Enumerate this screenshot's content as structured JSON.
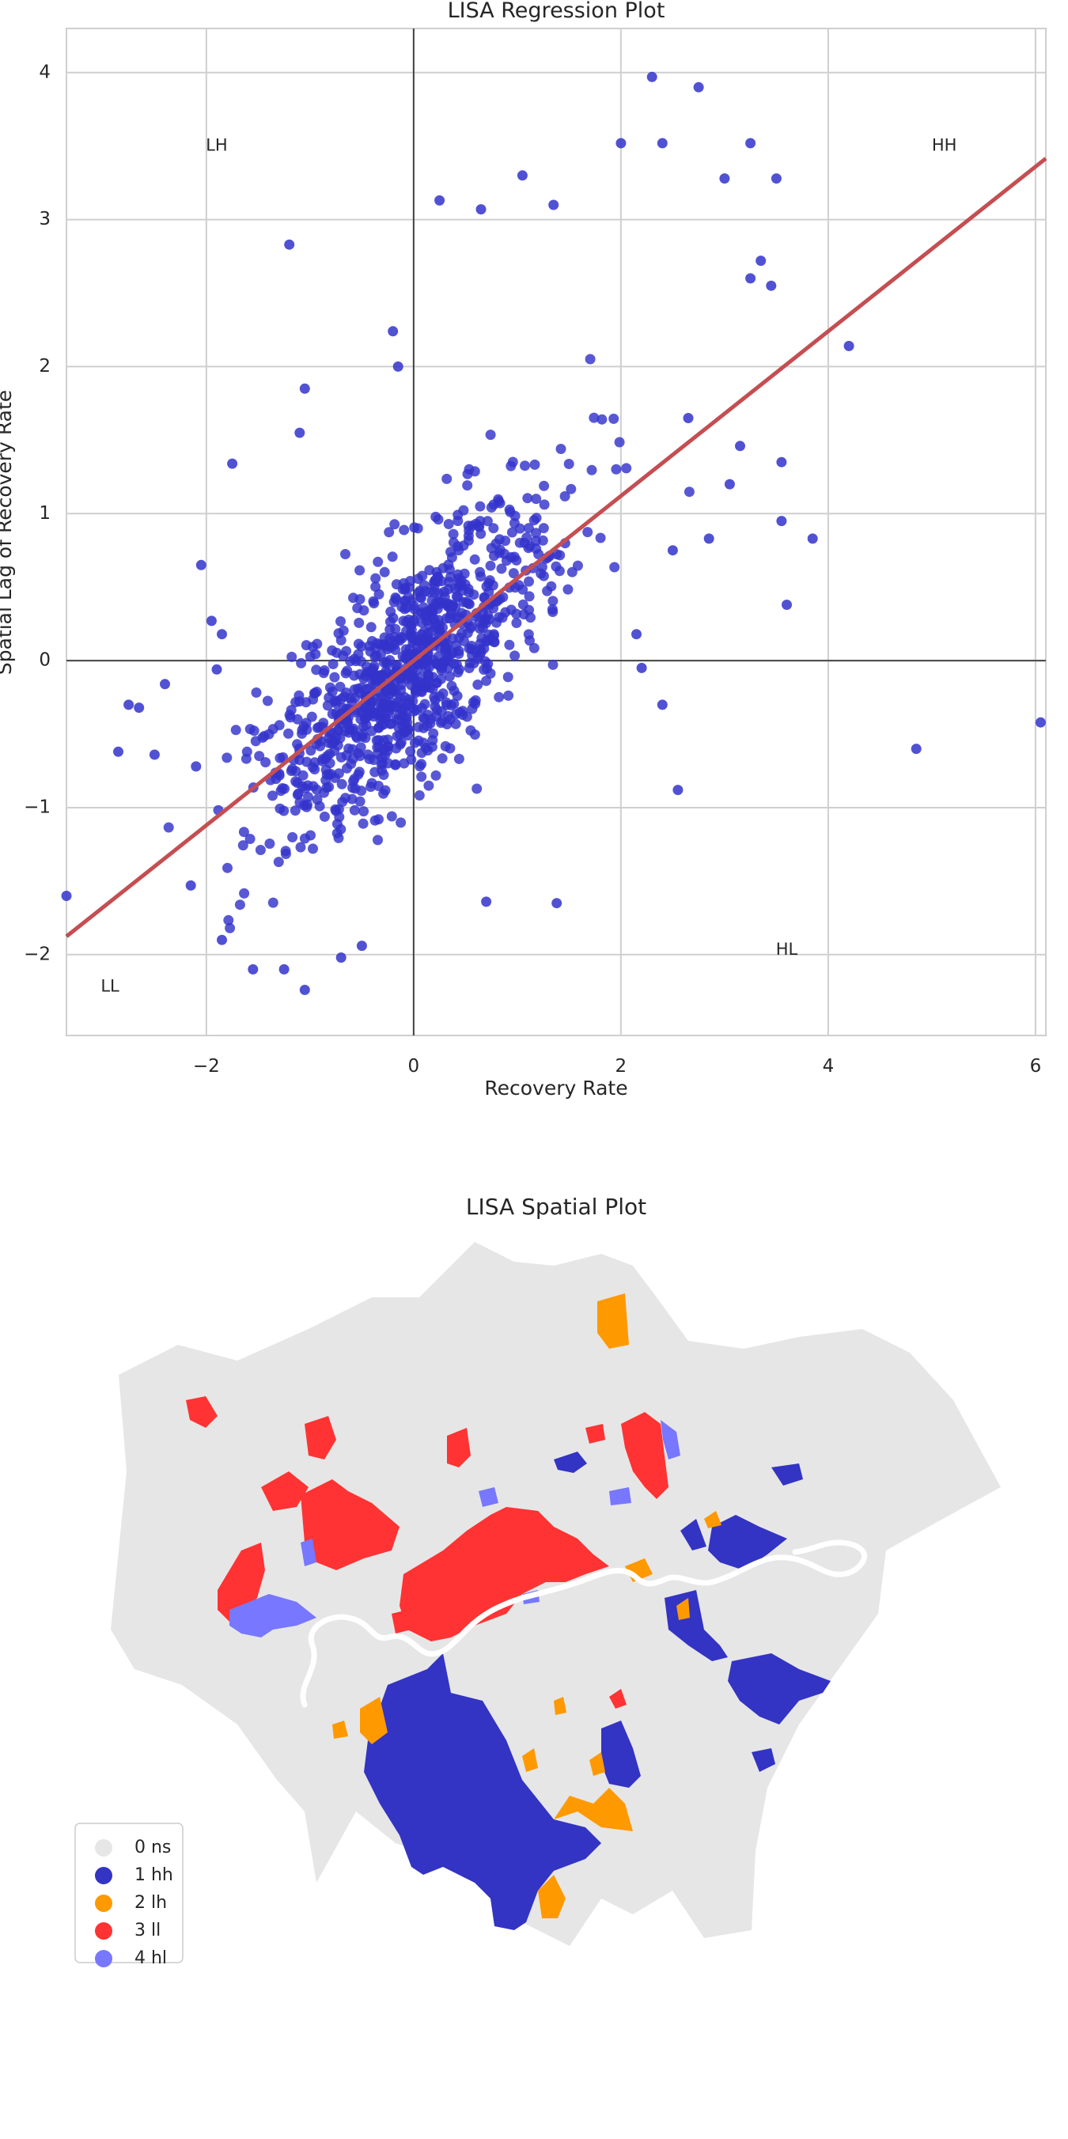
{
  "chart_data": [
    {
      "type": "scatter",
      "title": "LISA Regression Plot",
      "xlabel": "Recovery Rate",
      "ylabel": "Spatial Lag of Recovery Rate",
      "xlim": [
        -3.35,
        6.1
      ],
      "ylim": [
        -2.55,
        4.3
      ],
      "xticks": [
        -2,
        0,
        2,
        4,
        6
      ],
      "yticks": [
        -2,
        -1,
        0,
        1,
        2,
        3,
        4
      ],
      "grid": true,
      "point_color": "#3333cc",
      "line_color": "#c44e52",
      "regression_line": {
        "slope": 0.56,
        "intercept": 0.0
      },
      "quadrant_labels": [
        {
          "text": "LH",
          "x": -1.9,
          "y": 3.5
        },
        {
          "text": "HH",
          "x": 5.12,
          "y": 3.5
        },
        {
          "text": "HL",
          "x": 3.6,
          "y": -1.97
        },
        {
          "text": "LL",
          "x": -2.93,
          "y": -2.22
        }
      ],
      "highlighted_points": [
        [
          -3.35,
          -1.6
        ],
        [
          -2.85,
          -0.62
        ],
        [
          -2.75,
          -0.3
        ],
        [
          -2.65,
          -0.32
        ],
        [
          -2.5,
          -0.64
        ],
        [
          -2.4,
          -0.16
        ],
        [
          -2.1,
          -0.72
        ],
        [
          -2.05,
          0.65
        ],
        [
          -1.95,
          0.27
        ],
        [
          -1.85,
          0.18
        ],
        [
          -1.75,
          1.34
        ],
        [
          -1.9,
          -0.06
        ],
        [
          -1.85,
          -1.9
        ],
        [
          -2.15,
          -1.53
        ],
        [
          -1.55,
          -2.1
        ],
        [
          -1.2,
          2.83
        ],
        [
          -1.05,
          1.85
        ],
        [
          -1.1,
          1.55
        ],
        [
          -0.2,
          2.24
        ],
        [
          -0.15,
          2.0
        ],
        [
          0.25,
          3.13
        ],
        [
          0.65,
          3.07
        ],
        [
          1.05,
          3.3
        ],
        [
          1.35,
          3.1
        ],
        [
          2.0,
          3.52
        ],
        [
          2.3,
          3.97
        ],
        [
          2.75,
          3.9
        ],
        [
          2.4,
          3.52
        ],
        [
          3.0,
          3.28
        ],
        [
          3.25,
          3.52
        ],
        [
          3.5,
          3.28
        ],
        [
          3.25,
          2.6
        ],
        [
          3.45,
          2.55
        ],
        [
          3.35,
          2.72
        ],
        [
          4.2,
          2.14
        ],
        [
          3.55,
          1.35
        ],
        [
          3.55,
          0.95
        ],
        [
          3.85,
          0.83
        ],
        [
          3.6,
          0.38
        ],
        [
          2.4,
          -0.3
        ],
        [
          2.55,
          -0.88
        ],
        [
          4.85,
          -0.6
        ],
        [
          6.05,
          -0.42
        ],
        [
          1.38,
          -1.65
        ],
        [
          0.7,
          -1.64
        ],
        [
          -1.05,
          -2.24
        ],
        [
          -0.7,
          -2.02
        ],
        [
          -0.5,
          -1.94
        ],
        [
          -1.25,
          -2.1
        ],
        [
          2.85,
          0.83
        ],
        [
          2.5,
          0.75
        ],
        [
          2.15,
          0.18
        ],
        [
          2.2,
          -0.05
        ],
        [
          2.65,
          1.65
        ],
        [
          3.05,
          1.2
        ],
        [
          3.15,
          1.46
        ]
      ],
      "cluster_center": {
        "x": -0.05,
        "y": -0.05,
        "spread_x": 0.72,
        "spread_y": 0.62,
        "count": 1000
      }
    },
    {
      "type": "map",
      "title": "LISA Spatial Plot",
      "legend": [
        {
          "label": "0 ns",
          "color": "#e6e6e6"
        },
        {
          "label": "1 hh",
          "color": "#3333c4"
        },
        {
          "label": "2 lh",
          "color": "#ff9900"
        },
        {
          "label": "3 ll",
          "color": "#ff3333"
        },
        {
          "label": "4 hl",
          "color": "#7777ff"
        }
      ]
    }
  ]
}
